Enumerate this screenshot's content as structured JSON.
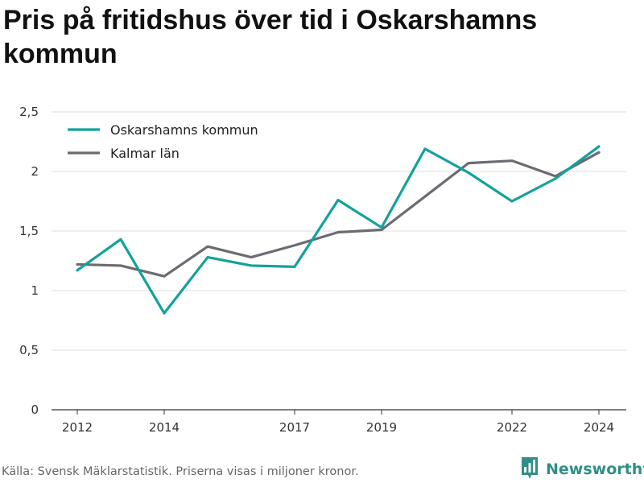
{
  "title": "Pris på fritidshus över tid i Oskarshamns kommun",
  "source_note": "Källa: Svensk Mäklarstatistik. Priserna visas i miljoner kronor.",
  "brand": {
    "name": "Newsworthy",
    "logo_icon": "bar-chart-logo-icon"
  },
  "colors": {
    "oskarshamn": "#12a29b",
    "kalmar": "#6d6b72",
    "grid": "#dddddd",
    "axis": "#333333",
    "brand": "#2f8f86"
  },
  "chart_data": {
    "type": "line",
    "title": "Pris på fritidshus över tid i Oskarshamns kommun",
    "xlabel": "",
    "ylabel": "",
    "x": [
      2012,
      2013,
      2014,
      2015,
      2016,
      2017,
      2018,
      2019,
      2020,
      2021,
      2022,
      2023,
      2024
    ],
    "x_ticks": [
      2012,
      2014,
      2017,
      2019,
      2022,
      2024
    ],
    "y_ticks": [
      "0",
      "0,5",
      "1",
      "1,5",
      "2",
      "2,5"
    ],
    "ylim": [
      0,
      2.5
    ],
    "xlim": [
      2011.4,
      2024.6
    ],
    "grid": true,
    "legend_position": "top-left",
    "series": [
      {
        "name": "Oskarshamns kommun",
        "color": "#12a29b",
        "values": [
          1.17,
          1.43,
          0.81,
          1.28,
          1.21,
          1.2,
          1.76,
          1.53,
          2.19,
          1.99,
          1.75,
          1.94,
          2.21
        ]
      },
      {
        "name": "Kalmar län",
        "color": "#6d6b72",
        "values": [
          1.22,
          1.21,
          1.12,
          1.37,
          1.28,
          1.38,
          1.49,
          1.51,
          1.79,
          2.07,
          2.09,
          1.96,
          2.16
        ]
      }
    ]
  }
}
